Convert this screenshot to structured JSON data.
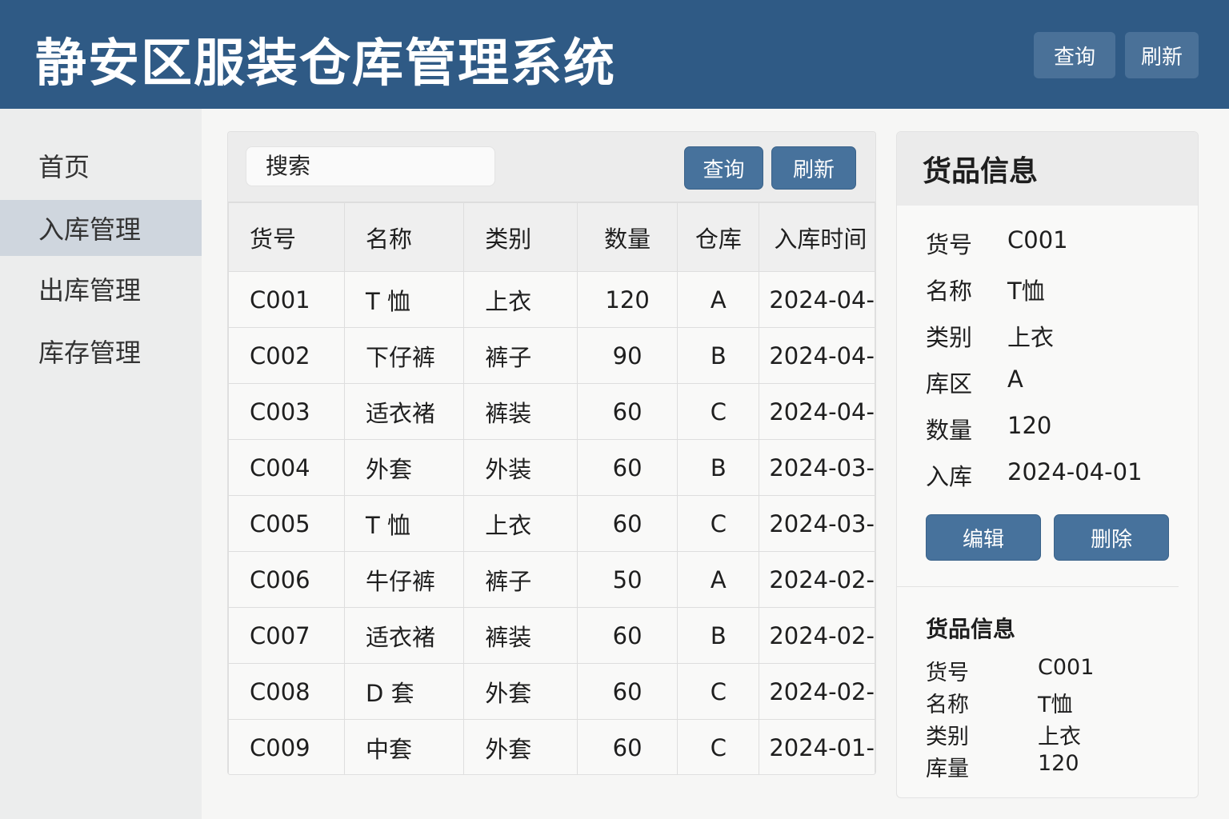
{
  "header": {
    "title": "静安区服装仓库管理系统",
    "query": "查询",
    "refresh": "刷新"
  },
  "sidebar": {
    "items": [
      {
        "label": "首页"
      },
      {
        "label": "入库管理",
        "active": true
      },
      {
        "label": "出库管理"
      },
      {
        "label": "库存管理"
      }
    ]
  },
  "toolbar": {
    "search_value": "搜索",
    "query": "查询",
    "refresh": "刷新"
  },
  "table": {
    "columns": [
      "货号",
      "名称",
      "类别",
      "数量",
      "仓库",
      "入库时间"
    ],
    "rows": [
      [
        "C001",
        "T 恤",
        "上衣",
        "120",
        "A",
        "2024-04-"
      ],
      [
        "C002",
        "下仔裤",
        "裤子",
        "90",
        "B",
        "2024-04-"
      ],
      [
        "C003",
        "适衣褚",
        "裤装",
        "60",
        "C",
        "2024-04-"
      ],
      [
        "C004",
        "外套",
        "外装",
        "60",
        "B",
        "2024-03-"
      ],
      [
        "C005",
        "T 恤",
        "上衣",
        "60",
        "C",
        "2024-03-"
      ],
      [
        "C006",
        "牛仔裤",
        "裤子",
        "50",
        "A",
        "2024-02-"
      ],
      [
        "C007",
        "适衣褚",
        "裤装",
        "60",
        "B",
        "2024-02-"
      ],
      [
        "C008",
        "D 套",
        "外套",
        "60",
        "C",
        "2024-02-"
      ],
      [
        "C009",
        "中套",
        "外套",
        "60",
        "C",
        "2024-01-"
      ]
    ]
  },
  "detail": {
    "title": "货品信息",
    "fields": [
      {
        "k": "货号",
        "v": "C001"
      },
      {
        "k": "名称",
        "v": "T恤"
      },
      {
        "k": "类别",
        "v": "上衣"
      },
      {
        "k": "库区",
        "v": "A"
      },
      {
        "k": "数量",
        "v": "120"
      },
      {
        "k": "入库",
        "v": "2024-04-01"
      }
    ],
    "edit": "编辑",
    "delete": "删除",
    "sub_title": "货品信息",
    "sub_fields": [
      {
        "k": "货号",
        "v": "C001"
      },
      {
        "k": "名称",
        "v": "T恤"
      },
      {
        "k": "类别",
        "v": "上衣"
      },
      {
        "k": "库量",
        "v": "120"
      }
    ]
  },
  "colors": {
    "header": "#2f5a85",
    "button": "#47729c",
    "sidebar_active": "#cfd6de"
  }
}
